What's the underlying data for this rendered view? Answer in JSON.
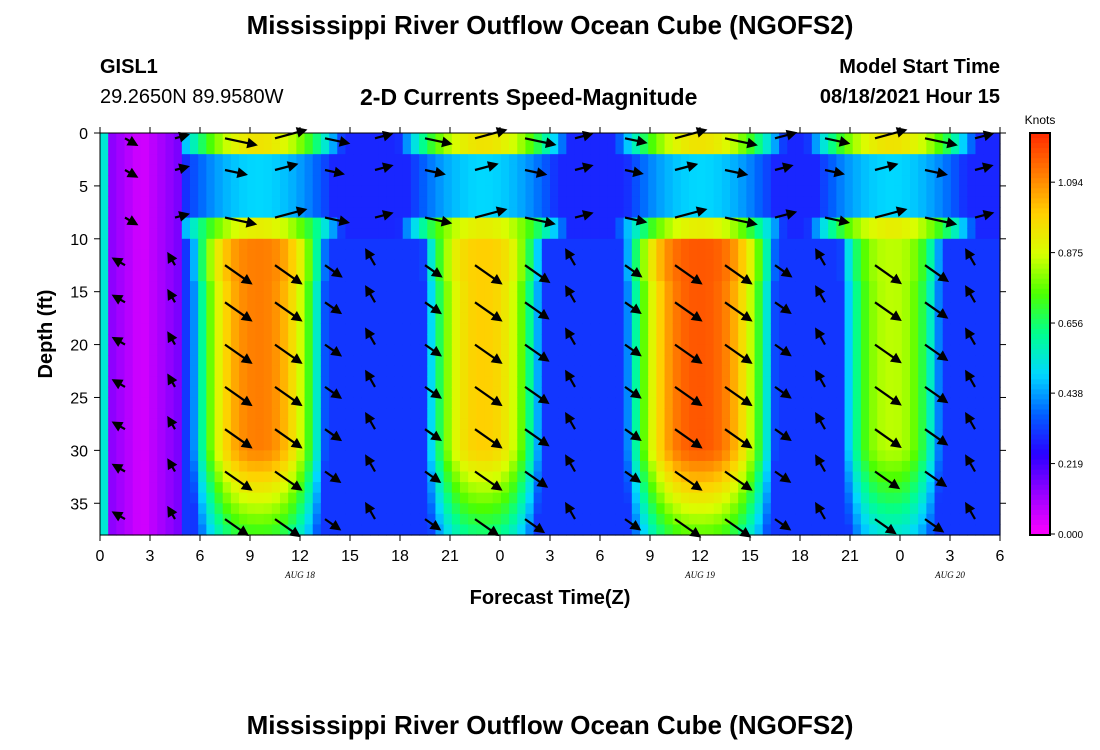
{
  "header": {
    "title_top": "Mississippi River Outflow Ocean Cube (NGOFS2)",
    "station_id": "GISL1",
    "station_coords": "29.2650N  89.9580W",
    "plot_title": "2-D Currents Speed-Magnitude",
    "model_label": "Model Start Time",
    "model_start": "08/18/2021 Hour 15",
    "title_bottom": "Mississippi River Outflow Ocean Cube (NGOFS2)"
  },
  "chart_data": {
    "type": "heatmap",
    "xlabel": "Forecast Time(Z)",
    "ylabel": "Depth (ft)",
    "x_tick_labels": [
      "0",
      "3",
      "6",
      "9",
      "12",
      "15",
      "18",
      "21",
      "0",
      "3",
      "6",
      "9",
      "12",
      "15",
      "18",
      "21",
      "0",
      "3",
      "6"
    ],
    "date_labels": [
      {
        "label": "AUG 18",
        "hour": 12
      },
      {
        "label": "AUG 19",
        "hour": 36
      },
      {
        "label": "AUG 20",
        "hour": 51
      }
    ],
    "xlim": [
      0,
      54
    ],
    "y_ticks": [
      0,
      5,
      10,
      15,
      20,
      25,
      30,
      35
    ],
    "ylim": [
      0,
      38
    ],
    "colorbar": {
      "title": "Knots",
      "tick_labels": [
        "0.000",
        "0.219",
        "0.438",
        "0.656",
        "0.875",
        "1.094"
      ],
      "tick_values": [
        0,
        0.219,
        0.438,
        0.656,
        0.875,
        1.094
      ],
      "range": [
        0,
        1.25
      ],
      "colors": [
        "#ff00ff",
        "#9a00ff",
        "#2a00ff",
        "#0060ff",
        "#00d8ff",
        "#00ff90",
        "#4cff00",
        "#d8ff00",
        "#ffd000",
        "#ff7a00",
        "#ff2a00"
      ]
    },
    "ebb_cores": [
      {
        "start_hour": 6,
        "end_hour": 13,
        "peak_speed": 1.12
      },
      {
        "start_hour": 20,
        "end_hour": 26,
        "peak_speed": 1.0
      },
      {
        "start_hour": 32,
        "end_hour": 40,
        "peak_speed": 1.18
      },
      {
        "start_hour": 45,
        "end_hour": 50,
        "peak_speed": 0.85
      }
    ]
  }
}
